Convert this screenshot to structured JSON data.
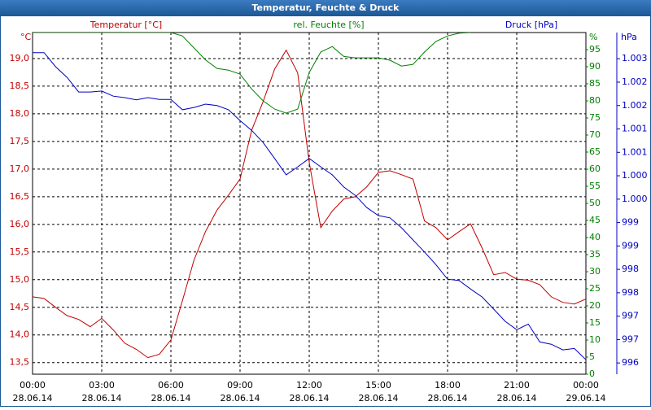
{
  "chart_data": {
    "type": "line",
    "title": "Temperatur, Feuchte & Druck",
    "x": [
      0,
      0.5,
      1,
      1.5,
      2,
      2.5,
      3,
      3.5,
      4,
      4.5,
      5,
      5.5,
      6,
      6.5,
      7,
      7.5,
      8,
      8.5,
      9,
      9.5,
      10,
      10.5,
      11,
      11.5,
      12,
      12.5,
      13,
      13.5,
      14,
      14.5,
      15,
      15.5,
      16,
      16.5,
      17,
      17.5,
      18,
      18.5,
      19,
      19.5,
      20,
      20.5,
      21,
      21.5,
      22,
      22.5,
      23,
      23.5,
      24
    ],
    "xlim": [
      0,
      24
    ],
    "xticks": [
      {
        "value": 0,
        "label": "00:00"
      },
      {
        "value": 3,
        "label": "03:00"
      },
      {
        "value": 6,
        "label": "06:00"
      },
      {
        "value": 9,
        "label": "09:00"
      },
      {
        "value": 12,
        "label": "12:00"
      },
      {
        "value": 15,
        "label": "15:00"
      },
      {
        "value": 18,
        "label": "18:00"
      },
      {
        "value": 21,
        "label": "21:00"
      },
      {
        "value": 24,
        "label": "00:00"
      }
    ],
    "xtick_dates": [
      "28.06.14",
      "28.06.14",
      "28.06.14",
      "28.06.14",
      "28.06.14",
      "28.06.14",
      "28.06.14",
      "28.06.14",
      "29.06.14"
    ],
    "ylabel": "°C",
    "ylim": [
      13.29,
      19.47
    ],
    "yticks": [
      {
        "value": 13.5,
        "label": "13,5"
      },
      {
        "value": 14,
        "label": "14,0"
      },
      {
        "value": 14.5,
        "label": "14,5"
      },
      {
        "value": 15,
        "label": "15,0"
      },
      {
        "value": 15.5,
        "label": "15,5"
      },
      {
        "value": 16,
        "label": "16,0"
      },
      {
        "value": 16.5,
        "label": "16,5"
      },
      {
        "value": 17,
        "label": "17,0"
      },
      {
        "value": 17.5,
        "label": "17,5"
      },
      {
        "value": 18,
        "label": "18,0"
      },
      {
        "value": 18.5,
        "label": "18,5"
      },
      {
        "value": 19,
        "label": "19,0"
      }
    ],
    "y3label": "%",
    "y3lim": [
      0,
      100
    ],
    "y3ticks": [
      0,
      5,
      10,
      15,
      20,
      25,
      30,
      35,
      40,
      45,
      50,
      55,
      60,
      65,
      70,
      75,
      80,
      85,
      90,
      95
    ],
    "y2label": "hPa",
    "y2lim": [
      995.76,
      1003.06
    ],
    "y2ticks": [
      {
        "value": 996,
        "label": "996"
      },
      {
        "value": 996.5,
        "label": "997"
      },
      {
        "value": 997,
        "label": "997"
      },
      {
        "value": 997.5,
        "label": "998"
      },
      {
        "value": 998,
        "label": "998"
      },
      {
        "value": 998.5,
        "label": "999"
      },
      {
        "value": 999,
        "label": "999"
      },
      {
        "value": 999.5,
        "label": "1.000"
      },
      {
        "value": 1000,
        "label": "1.000"
      },
      {
        "value": 1000.5,
        "label": "1.001"
      },
      {
        "value": 1001,
        "label": "1.001"
      },
      {
        "value": 1001.5,
        "label": "1.002"
      },
      {
        "value": 1002,
        "label": "1.002"
      },
      {
        "value": 1002.5,
        "label": "1.003"
      }
    ],
    "grid": true,
    "series": [
      {
        "name": "Temperatur [°C]",
        "color": "#c00000",
        "axis": "y",
        "values": [
          14.69,
          14.66,
          14.5,
          14.35,
          14.28,
          14.15,
          14.3,
          14.09,
          13.85,
          13.74,
          13.59,
          13.65,
          13.91,
          14.62,
          15.35,
          15.87,
          16.26,
          16.53,
          16.82,
          17.7,
          18.22,
          18.81,
          19.15,
          18.74,
          17.12,
          15.94,
          16.24,
          16.46,
          16.5,
          16.68,
          16.94,
          16.97,
          16.9,
          16.82,
          16.06,
          15.94,
          15.72,
          15.87,
          16.01,
          15.57,
          15.09,
          15.13,
          15.01,
          14.99,
          14.91,
          14.69,
          14.59,
          14.56,
          14.65
        ]
      },
      {
        "name": "rel. Feuchte [%]",
        "color": "#008000",
        "axis": "y3",
        "values": [
          100,
          100,
          100,
          100,
          100,
          100,
          100,
          100,
          100,
          100,
          100,
          100,
          100,
          99,
          95.5,
          92,
          89.5,
          89,
          87.8,
          83.5,
          80,
          77.6,
          76.4,
          77.6,
          88.3,
          94.3,
          95.9,
          93,
          92.6,
          92.6,
          92.6,
          91.9,
          90.2,
          90.7,
          94.3,
          97.4,
          99,
          99.8,
          100,
          null,
          null,
          null,
          null,
          null,
          null,
          null,
          null,
          null,
          null
        ]
      },
      {
        "name": "Druck [hPa]",
        "color": "#0000c0",
        "axis": "y2",
        "values": [
          1002.63,
          1002.63,
          1002.33,
          1002.1,
          1001.79,
          1001.79,
          1001.81,
          1001.7,
          1001.67,
          1001.62,
          1001.67,
          1001.63,
          1001.63,
          1001.41,
          1001.46,
          1001.53,
          1001.5,
          1001.41,
          1001.18,
          1000.97,
          1000.71,
          1000.37,
          1000.02,
          1000.19,
          1000.37,
          1000.19,
          1000.02,
          999.76,
          999.58,
          999.32,
          999.15,
          999.1,
          998.89,
          998.63,
          998.37,
          998.1,
          997.79,
          997.76,
          997.58,
          997.41,
          997.15,
          996.89,
          996.71,
          996.83,
          996.45,
          996.4,
          996.28,
          996.31,
          996.07
        ]
      }
    ]
  }
}
